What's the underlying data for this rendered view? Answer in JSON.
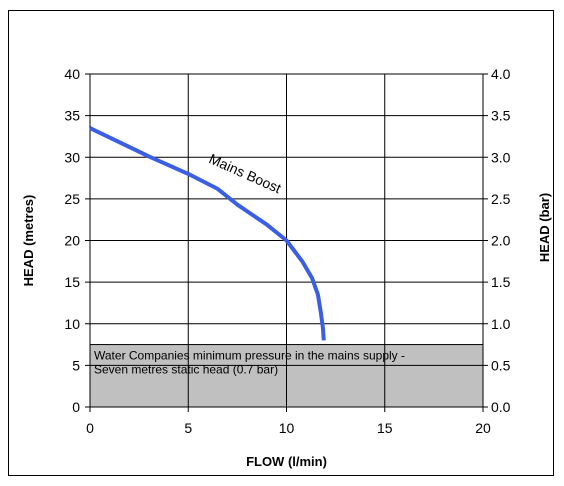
{
  "chart_data": {
    "type": "line",
    "title": "",
    "xlabel": "FLOW (l/min)",
    "ylabel": "HEAD (metres)",
    "y2label": "HEAD (bar)",
    "xlim": [
      0,
      20
    ],
    "ylim": [
      0,
      40
    ],
    "y2lim": [
      0.0,
      4.0
    ],
    "x_ticks": [
      "0",
      "5",
      "10",
      "15",
      "20"
    ],
    "y_ticks": [
      "0",
      "5",
      "10",
      "15",
      "20",
      "25",
      "30",
      "35",
      "40"
    ],
    "y2_ticks": [
      "0.0",
      "0.5",
      "1.0",
      "1.5",
      "2.0",
      "2.5",
      "3.0",
      "3.5",
      "4.0"
    ],
    "grid": true,
    "series": [
      {
        "name": "Mains Boost",
        "color": "#3a5fe5",
        "x": [
          0,
          3,
          5,
          6.5,
          7.5,
          9,
          10,
          10.8,
          11.3,
          11.6,
          11.75,
          11.85,
          11.9
        ],
        "y": [
          33.5,
          30.1,
          28.0,
          26.2,
          24.3,
          21.9,
          20.0,
          17.5,
          15.5,
          13.5,
          11.3,
          9.5,
          8.0
        ]
      }
    ],
    "shaded_region": {
      "y_from": 0,
      "y_to": 7.5,
      "color": "#c0c0c0",
      "text_lines": [
        "Water Companies minimum pressure in the mains supply -",
        "Seven metres static head (0.7 bar)"
      ]
    }
  }
}
